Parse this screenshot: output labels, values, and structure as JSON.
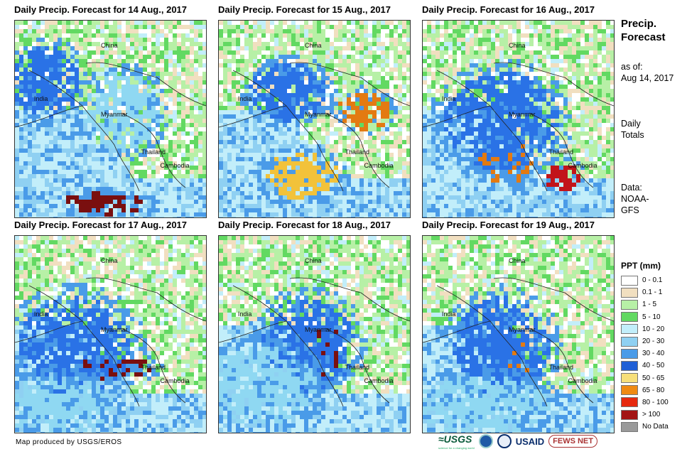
{
  "panels": [
    {
      "title": "Daily Precip. Forecast for 14 Aug., 2017",
      "seed": 14,
      "cores": [
        [
          0.45,
          0.92,
          0.22,
          0.06,
          "#7a0f0f"
        ],
        [
          0.15,
          0.3,
          0.18,
          0.18,
          "#2a72e6"
        ],
        [
          0.55,
          0.45,
          0.2,
          0.2,
          "#8fd8f2"
        ]
      ]
    },
    {
      "title": "Daily Precip. Forecast for 15 Aug., 2017",
      "seed": 15,
      "cores": [
        [
          0.42,
          0.78,
          0.2,
          0.12,
          "#f2c23a"
        ],
        [
          0.75,
          0.45,
          0.14,
          0.1,
          "#e37a12"
        ],
        [
          0.35,
          0.35,
          0.2,
          0.15,
          "#2a72e6"
        ]
      ]
    },
    {
      "title": "Daily Precip. Forecast for 16 Aug., 2017",
      "seed": 16,
      "cores": [
        [
          0.42,
          0.7,
          0.14,
          0.12,
          "#e37a12"
        ],
        [
          0.72,
          0.78,
          0.1,
          0.08,
          "#c2141a"
        ],
        [
          0.4,
          0.5,
          0.3,
          0.25,
          "#2a72e6"
        ]
      ]
    },
    {
      "title": "Daily Precip. Forecast for 17 Aug., 2017",
      "seed": 17,
      "cores": [
        [
          0.52,
          0.66,
          0.2,
          0.06,
          "#7a0f0f"
        ],
        [
          0.3,
          0.55,
          0.3,
          0.25,
          "#2a72e6"
        ],
        [
          0.2,
          0.85,
          0.3,
          0.15,
          "#8fd8f2"
        ]
      ]
    },
    {
      "title": "Daily Precip. Forecast for 18 Aug., 2017",
      "seed": 18,
      "cores": [
        [
          0.55,
          0.58,
          0.09,
          0.14,
          "#7a0f0f"
        ],
        [
          0.45,
          0.55,
          0.25,
          0.25,
          "#2a72e6"
        ],
        [
          0.2,
          0.75,
          0.3,
          0.2,
          "#8fd8f2"
        ]
      ]
    },
    {
      "title": "Daily Precip. Forecast for 19 Aug., 2017",
      "seed": 19,
      "cores": [
        [
          0.48,
          0.63,
          0.1,
          0.12,
          "#e37a12"
        ],
        [
          0.4,
          0.55,
          0.25,
          0.25,
          "#2a72e6"
        ],
        [
          0.3,
          0.85,
          0.35,
          0.15,
          "#8fd8f2"
        ]
      ]
    }
  ],
  "map_labels": {
    "china": "China",
    "india": "India",
    "myanmar": "Myanmar",
    "thailand": "Thailand",
    "cambodia": "Cambodia"
  },
  "sidebar": {
    "title_line1": "Precip.",
    "title_line2": "Forecast",
    "asof_line1": "as of:",
    "asof_line2": "Aug 14, 2017",
    "totals_line1": "Daily",
    "totals_line2": "Totals",
    "data_line1": "Data:",
    "data_line2": "NOAA-",
    "data_line3": "GFS"
  },
  "legend": {
    "title": "PPT (mm)",
    "items": [
      {
        "label": "0 - 0.1",
        "color": "#ffffff"
      },
      {
        "label": "0.1 - 1",
        "color": "#f1dfc0"
      },
      {
        "label": "1 - 5",
        "color": "#b7f0a6"
      },
      {
        "label": "5 - 10",
        "color": "#62d962"
      },
      {
        "label": "10 - 20",
        "color": "#c2eefa"
      },
      {
        "label": "20 - 30",
        "color": "#8fd0f2"
      },
      {
        "label": "30 - 40",
        "color": "#4a9be8"
      },
      {
        "label": "40 - 50",
        "color": "#1f5fd6"
      },
      {
        "label": "50 - 65",
        "color": "#f7df7a"
      },
      {
        "label": "65 - 80",
        "color": "#ef8a12"
      },
      {
        "label": "80 - 100",
        "color": "#e6290e"
      },
      {
        "label": "> 100",
        "color": "#a31414"
      },
      {
        "label": "No Data",
        "color": "#9a9a9a"
      }
    ]
  },
  "footer": {
    "credit": "Map produced by USGS/EROS",
    "logo_usgs": "≈USGS",
    "logo_usgs_tagline": "science for a changing world",
    "logo_usaid": "USAID",
    "logo_fews": "FEWS NET"
  }
}
